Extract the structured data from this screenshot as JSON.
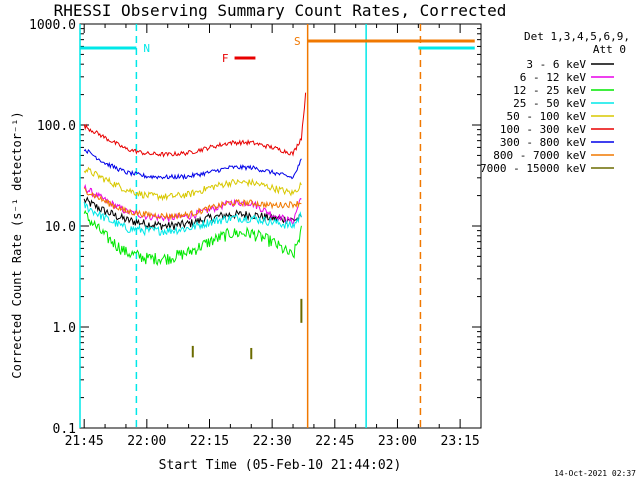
{
  "chart_data": {
    "type": "line",
    "title": "RHESSI Observing Summary Count Rates, Corrected",
    "xlabel": "Start Time (05-Feb-10 21:44:02)",
    "ylabel": "Corrected Count Rate (s⁻¹ detector⁻¹)",
    "y_scale": "log",
    "ylim": [
      0.1,
      1000
    ],
    "xlim_minutes_after_2145": [
      -1,
      95
    ],
    "x_ticks": [
      "21:45",
      "22:00",
      "22:15",
      "22:30",
      "22:45",
      "23:00",
      "23:15"
    ],
    "y_ticks": [
      "1000.0",
      "100.0",
      "10.0",
      "1.0",
      "0.1"
    ],
    "footer_date": "14-Oct-2021 02:37",
    "legend": {
      "header_line1": "Det 1,3,4,5,6,9,",
      "header_line2": "Att 0",
      "placement": "top-right"
    },
    "series": [
      {
        "name": "3 - 6 keV",
        "color": "#000000",
        "x": [
          0,
          5,
          10,
          15,
          20,
          25,
          30,
          35,
          40,
          45,
          50,
          52
        ],
        "y": [
          18,
          14,
          11.5,
          10.5,
          10,
          10.5,
          12,
          13,
          13,
          12,
          11.5,
          12
        ]
      },
      {
        "name": "6 - 12 keV",
        "color": "#e800e8",
        "x": [
          0,
          5,
          10,
          15,
          20,
          25,
          30,
          35,
          40,
          45,
          50,
          52
        ],
        "y": [
          24,
          18,
          14,
          12.5,
          12,
          12.5,
          14.5,
          17,
          17,
          13,
          11,
          20
        ]
      },
      {
        "name": "12 - 25 keV",
        "color": "#00e800",
        "x": [
          0,
          5,
          10,
          15,
          20,
          25,
          30,
          35,
          40,
          45,
          50,
          52
        ],
        "y": [
          13,
          8,
          5.5,
          4.8,
          4.8,
          5.5,
          7,
          8.5,
          8.5,
          7,
          5,
          9
        ]
      },
      {
        "name": "25 - 50 keV",
        "color": "#00e8e8",
        "x": [
          0,
          5,
          10,
          15,
          20,
          25,
          30,
          35,
          40,
          45,
          50,
          52
        ],
        "y": [
          16,
          12,
          9.5,
          9,
          9,
          9.5,
          11,
          12,
          12,
          11,
          10,
          13
        ]
      },
      {
        "name": "50 - 100 keV",
        "color": "#d8c800",
        "x": [
          0,
          5,
          10,
          15,
          20,
          25,
          30,
          35,
          40,
          45,
          50,
          52
        ],
        "y": [
          37,
          29,
          23,
          20,
          19.5,
          20.5,
          24,
          27,
          27,
          24,
          21,
          26
        ]
      },
      {
        "name": "100 - 300 keV",
        "color": "#e80000",
        "x": [
          0,
          5,
          10,
          15,
          20,
          25,
          30,
          35,
          40,
          45,
          50,
          52,
          53
        ],
        "y": [
          98,
          75,
          58,
          52,
          51,
          53,
          60,
          67,
          67,
          60,
          52,
          75,
          200
        ]
      },
      {
        "name": "300 - 800 keV",
        "color": "#0000e8",
        "x": [
          0,
          5,
          10,
          15,
          20,
          25,
          30,
          35,
          40,
          45,
          50,
          52
        ],
        "y": [
          58,
          42,
          34,
          31,
          30.5,
          31,
          34,
          38,
          38,
          34,
          30,
          45
        ]
      },
      {
        "name": "800 - 7000 keV",
        "color": "#f07800",
        "x": [
          0,
          5,
          10,
          15,
          20,
          25,
          30,
          35,
          40,
          45,
          50,
          52
        ],
        "y": [
          23,
          17.5,
          14,
          13,
          12.5,
          13,
          15,
          17,
          17,
          16,
          16.5,
          17
        ]
      },
      {
        "name": "7000 - 15000 keV",
        "color": "#6b6b00",
        "x": [
          26,
          26,
          40,
          40,
          52,
          52
        ],
        "y": [
          0.5,
          0.65,
          0.48,
          0.62,
          1.1,
          1.9
        ]
      }
    ],
    "flags": [
      {
        "label": "N",
        "color": "#00e8e8",
        "x_start": -1,
        "x_end": 12.5,
        "segments": [
          [
            -1,
            12.5
          ],
          [
            80,
            93.5
          ]
        ]
      },
      {
        "label": "F",
        "color": "#e80000",
        "segments": [
          [
            36,
            41
          ]
        ]
      },
      {
        "label": "S",
        "color": "#f07800",
        "segments": [
          [
            53.5,
            93.5
          ]
        ]
      }
    ],
    "vertical_lines": [
      {
        "x": -1,
        "color": "#00e8e8",
        "style": "solid"
      },
      {
        "x": 12.5,
        "color": "#00e8e8",
        "style": "dashed"
      },
      {
        "x": 53.5,
        "color": "#f07800",
        "style": "solid"
      },
      {
        "x": 67.5,
        "color": "#00e8e8",
        "style": "solid"
      },
      {
        "x": 80.5,
        "color": "#f07800",
        "style": "dashed"
      }
    ]
  }
}
